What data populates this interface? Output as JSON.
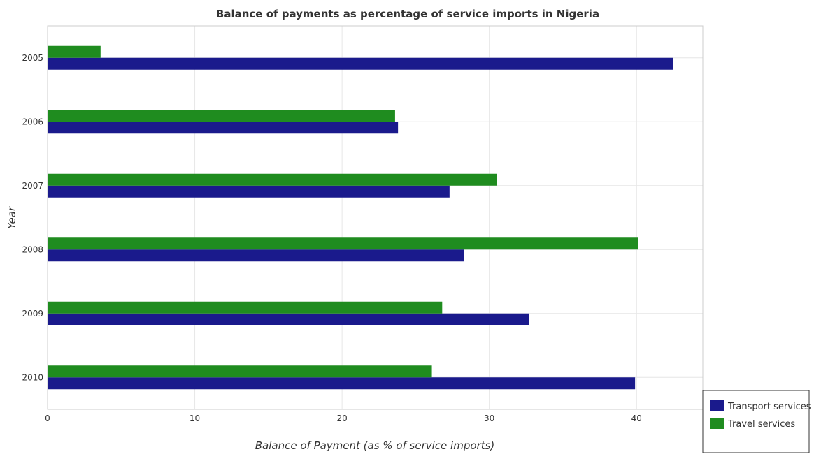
{
  "chart_data": {
    "type": "bar",
    "orientation": "horizontal",
    "title": "Balance of payments as percentage of service imports in Nigeria",
    "xlabel": "Balance of Payment (as % of service imports)",
    "ylabel": "Year",
    "categories": [
      "2005",
      "2006",
      "2007",
      "2008",
      "2009",
      "2010"
    ],
    "series": [
      {
        "name": "Transport services",
        "color": "#1a1a8c",
        "values": [
          42.5,
          23.8,
          27.3,
          28.3,
          32.7,
          39.9
        ]
      },
      {
        "name": "Travel services",
        "color": "#1f8c1f",
        "values": [
          3.6,
          23.6,
          30.5,
          40.1,
          26.8,
          26.1
        ]
      }
    ],
    "xlim": [
      0,
      44.5
    ],
    "xticks": [
      0,
      10,
      20,
      30,
      40
    ],
    "grid": true,
    "legend_position": "bottom-right"
  }
}
